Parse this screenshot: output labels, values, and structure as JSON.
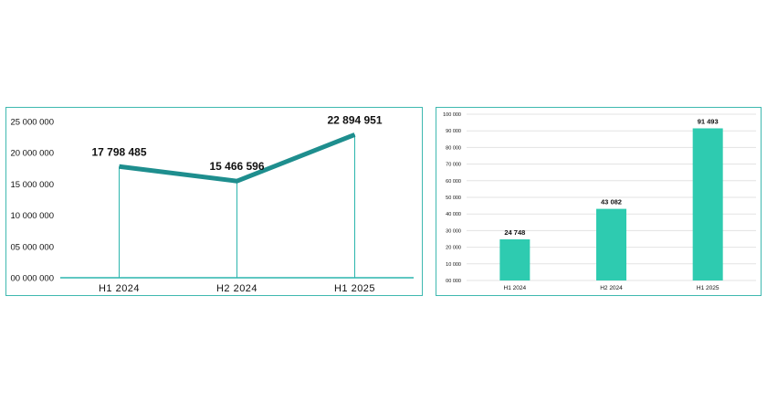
{
  "chart_data": [
    {
      "type": "line",
      "title": "",
      "xlabel": "",
      "ylabel": "",
      "categories": [
        "H1 2024",
        "H2 2024",
        "H1 2025"
      ],
      "values": [
        17798485,
        15466596,
        22894951
      ],
      "value_labels": [
        "17 798 485",
        "15 466 596",
        "22 894 951"
      ],
      "y_ticks": [
        "00 000 000",
        "05 000 000",
        "10 000 000",
        "15 000 000",
        "20 000 000",
        "25 000 000"
      ],
      "ylim": [
        0,
        25000000
      ],
      "grid": false,
      "drop_lines": true,
      "line_color": "#1e8e8e",
      "axis_color": "#2bb5ad"
    },
    {
      "type": "bar",
      "title": "",
      "xlabel": "",
      "ylabel": "",
      "categories": [
        "H1 2024",
        "H2 2024",
        "H1 2025"
      ],
      "values": [
        24748,
        43082,
        91493
      ],
      "value_labels": [
        "24 748",
        "43 082",
        "91 493"
      ],
      "y_ticks": [
        "00 000",
        "10 000",
        "20 000",
        "30 000",
        "40 000",
        "50 000",
        "60 000",
        "70 000",
        "80 000",
        "90 000",
        "100 000"
      ],
      "ylim": [
        0,
        100000
      ],
      "grid": true,
      "bar_color": "#2ecbb0",
      "grid_color": "#e3e3e3"
    }
  ]
}
